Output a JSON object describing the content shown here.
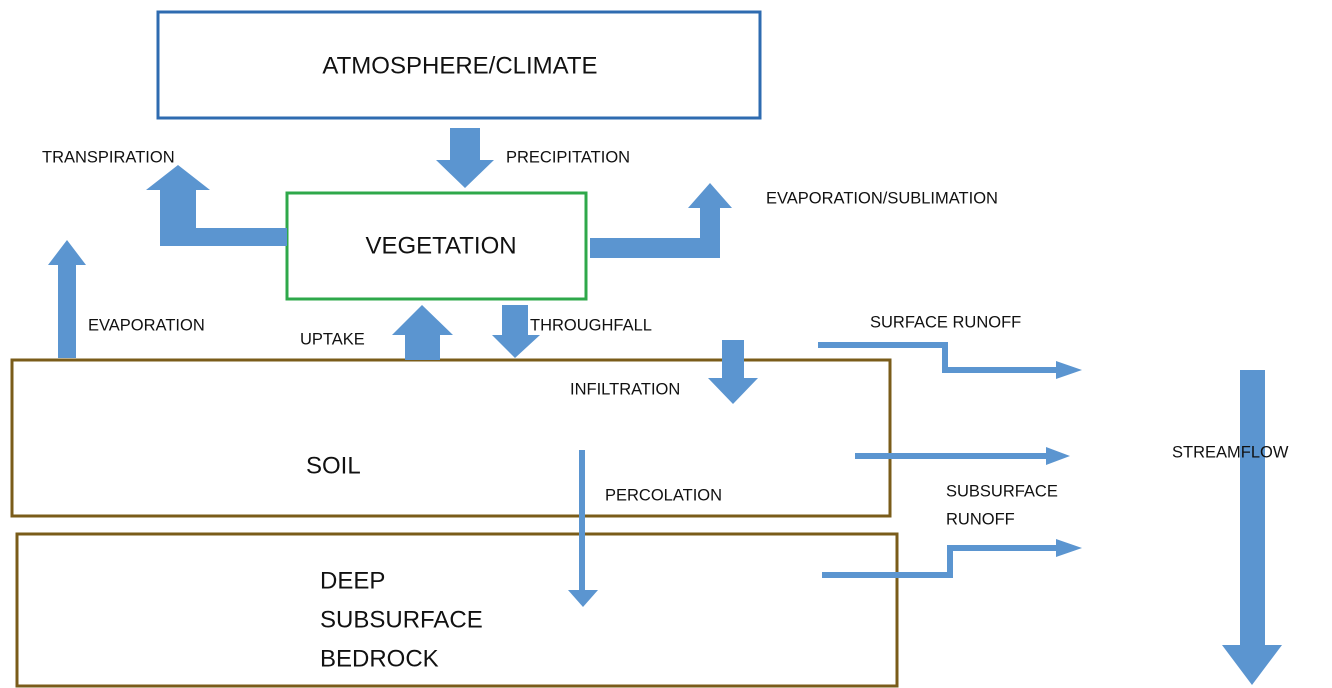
{
  "nodes": [
    {
      "label": "ATMOSPHERE/CLIMATE"
    },
    {
      "label": "VEGETATION"
    },
    {
      "label": "SOIL"
    },
    {
      "lines": [
        "DEEP",
        "SUBSURFACE",
        "BEDROCK"
      ]
    }
  ],
  "flows": [
    {
      "label": "TRANSPIRATION"
    },
    {
      "label": "PRECIPITATION"
    },
    {
      "label": "EVAPORATION/SUBLIMATION"
    },
    {
      "label": "EVAPORATION"
    },
    {
      "label": "UPTAKE"
    },
    {
      "label": "THROUGHFALL"
    },
    {
      "label": "SURFACE RUNOFF"
    },
    {
      "label": "INFILTRATION"
    },
    {
      "label": "PERCOLATION"
    },
    {
      "lines": [
        "SUBSURFACE",
        "RUNOFF"
      ]
    },
    {
      "label": "STREAMFLOW"
    }
  ]
}
